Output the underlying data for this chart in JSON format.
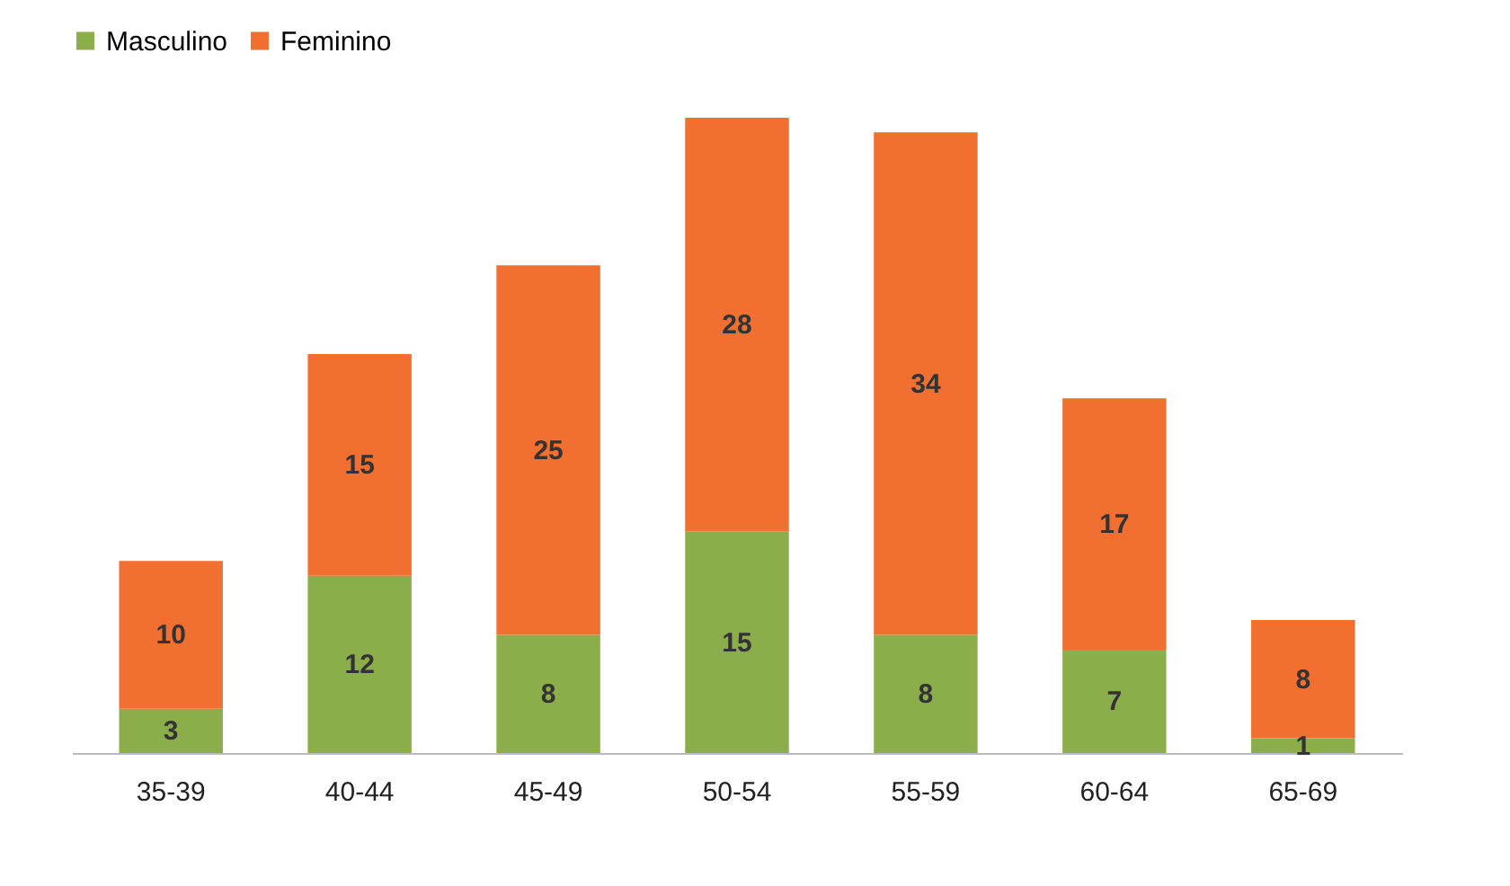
{
  "chart_data": {
    "type": "bar",
    "stacked": true,
    "data_labels": true,
    "legend": "top",
    "grid": false,
    "categories": [
      "35-39",
      "40-44",
      "45-49",
      "50-54",
      "55-59",
      "60-64",
      "65-69"
    ],
    "series": [
      {
        "name": "Masculino",
        "color": "#8cae4a",
        "values": [
          3,
          12,
          8,
          15,
          8,
          7,
          1
        ]
      },
      {
        "name": "Feminino",
        "color": "#f26f32",
        "values": [
          10,
          15,
          25,
          28,
          34,
          17,
          8
        ]
      }
    ]
  }
}
